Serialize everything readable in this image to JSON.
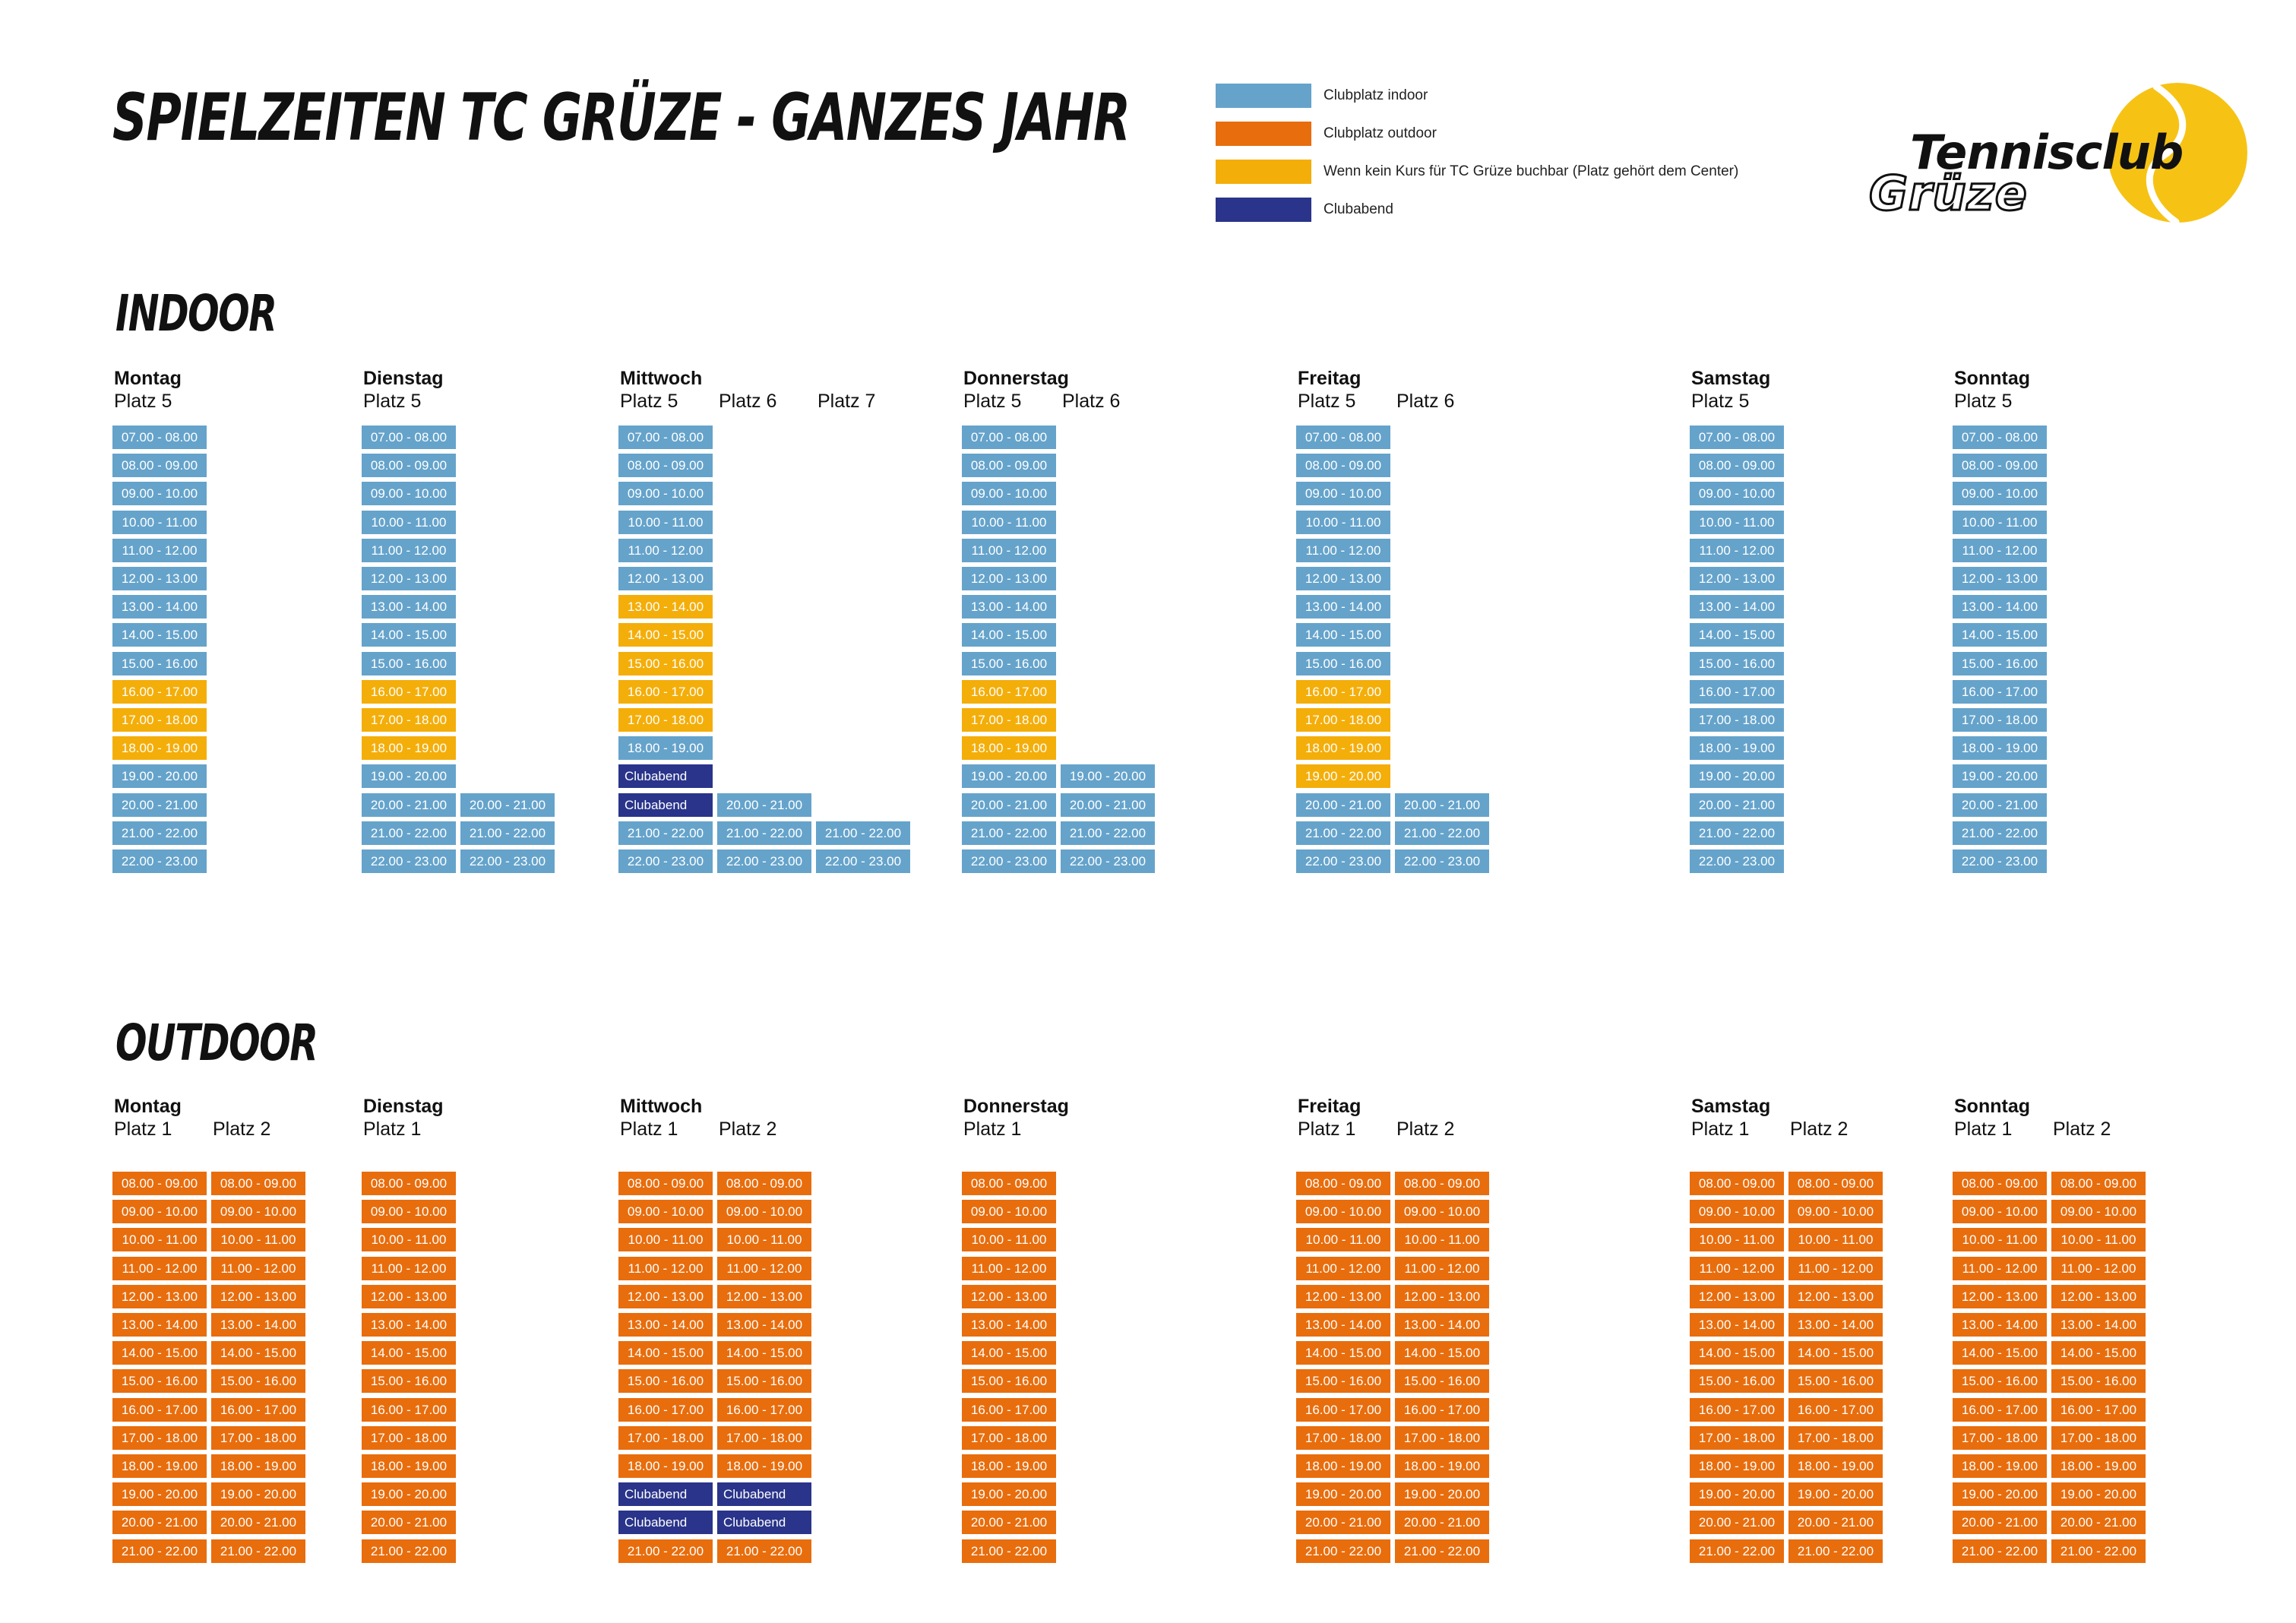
{
  "title": "SPIELZEITEN TC GRÜZE - GANZES JAHR",
  "colors": {
    "indoor": "#65a3cb",
    "outdoor": "#e86d0d",
    "center": "#f4ae0a",
    "clubabend": "#29348a"
  },
  "legend": [
    {
      "color": "indoor",
      "label": "Clubplatz indoor"
    },
    {
      "color": "outdoor",
      "label": "Clubplatz outdoor"
    },
    {
      "color": "center",
      "label": "Wenn kein Kurs für TC Grüze buchbar (Platz gehört dem Center)"
    },
    {
      "color": "clubabend",
      "label": "Clubabend"
    }
  ],
  "logo": {
    "line1": "Tennisclub",
    "line2": "Grüze"
  },
  "indoor": {
    "title": "INDOOR",
    "days": [
      {
        "name": "Montag",
        "courts": [
          {
            "label": "Platz 5",
            "start": 7,
            "end": 23,
            "center": [
              16,
              17,
              18
            ],
            "clubabend": []
          }
        ]
      },
      {
        "name": "Dienstag",
        "courts": [
          {
            "label": "Platz 5",
            "start": 7,
            "end": 23,
            "center": [
              16,
              17,
              18
            ],
            "clubabend": []
          },
          {
            "label": "",
            "start": 20,
            "end": 23,
            "center": [],
            "clubabend": []
          }
        ]
      },
      {
        "name": "Mittwoch",
        "courts": [
          {
            "label": "Platz 5",
            "start": 7,
            "end": 23,
            "center": [
              13,
              14,
              15,
              16,
              17
            ],
            "clubabend": [
              19,
              20
            ]
          },
          {
            "label": "Platz 6",
            "start": 20,
            "end": 23,
            "center": [],
            "clubabend": []
          },
          {
            "label": "Platz 7",
            "start": 21,
            "end": 23,
            "center": [],
            "clubabend": []
          }
        ]
      },
      {
        "name": "Donnerstag",
        "courts": [
          {
            "label": "Platz 5",
            "start": 7,
            "end": 23,
            "center": [
              16,
              17,
              18
            ],
            "clubabend": []
          },
          {
            "label": "Platz 6",
            "start": 19,
            "end": 23,
            "center": [],
            "clubabend": []
          }
        ]
      },
      {
        "name": "Freitag",
        "courts": [
          {
            "label": "Platz 5",
            "start": 7,
            "end": 23,
            "center": [
              16,
              17,
              18,
              19
            ],
            "clubabend": []
          },
          {
            "label": "Platz 6",
            "start": 20,
            "end": 23,
            "center": [],
            "clubabend": []
          }
        ]
      },
      {
        "name": "Samstag",
        "courts": [
          {
            "label": "Platz 5",
            "start": 7,
            "end": 23,
            "center": [],
            "clubabend": []
          }
        ]
      },
      {
        "name": "Sonntag",
        "courts": [
          {
            "label": "Platz 5",
            "start": 7,
            "end": 23,
            "center": [],
            "clubabend": []
          }
        ]
      }
    ]
  },
  "outdoor": {
    "title": "OUTDOOR",
    "days": [
      {
        "name": "Montag",
        "courts": [
          {
            "label": "Platz 1",
            "start": 8,
            "end": 22,
            "center": [],
            "clubabend": []
          },
          {
            "label": "Platz 2",
            "start": 8,
            "end": 22,
            "center": [],
            "clubabend": []
          }
        ]
      },
      {
        "name": "Dienstag",
        "courts": [
          {
            "label": "Platz 1",
            "start": 8,
            "end": 22,
            "center": [],
            "clubabend": []
          }
        ]
      },
      {
        "name": "Mittwoch",
        "courts": [
          {
            "label": "Platz 1",
            "start": 8,
            "end": 22,
            "center": [],
            "clubabend": [
              19,
              20
            ]
          },
          {
            "label": "Platz 2",
            "start": 8,
            "end": 22,
            "center": [],
            "clubabend": [
              19,
              20
            ]
          }
        ]
      },
      {
        "name": "Donnerstag",
        "courts": [
          {
            "label": "Platz 1",
            "start": 8,
            "end": 22,
            "center": [],
            "clubabend": []
          }
        ]
      },
      {
        "name": "Freitag",
        "courts": [
          {
            "label": "Platz 1",
            "start": 8,
            "end": 22,
            "center": [],
            "clubabend": []
          },
          {
            "label": "Platz 2",
            "start": 8,
            "end": 22,
            "center": [],
            "clubabend": []
          }
        ]
      },
      {
        "name": "Samstag",
        "courts": [
          {
            "label": "Platz 1",
            "start": 8,
            "end": 22,
            "center": [],
            "clubabend": []
          },
          {
            "label": "Platz 2",
            "start": 8,
            "end": 22,
            "center": [],
            "clubabend": []
          }
        ]
      },
      {
        "name": "Sonntag",
        "courts": [
          {
            "label": "Platz 1",
            "start": 8,
            "end": 22,
            "center": [],
            "clubabend": []
          },
          {
            "label": "Platz 2",
            "start": 8,
            "end": 22,
            "center": [],
            "clubabend": []
          }
        ]
      }
    ]
  },
  "clubabend_label": "Clubabend"
}
